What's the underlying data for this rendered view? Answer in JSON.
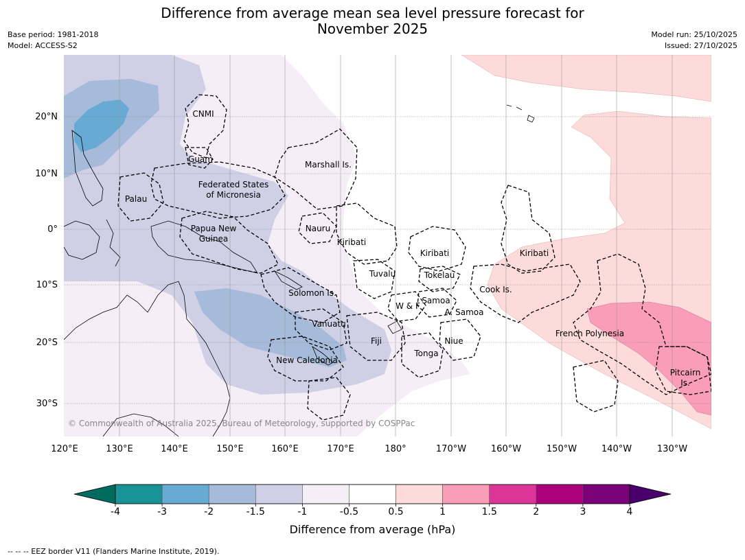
{
  "title_line1": "Difference from average mean sea level pressure forecast for",
  "title_line2": "November 2025",
  "meta_left": [
    "Base period: 1981-2018",
    "Model: ACCESS-S2"
  ],
  "meta_right": [
    "Model run: 25/10/2025",
    "Issued: 27/10/2025"
  ],
  "copyright": "© Commonwealth of Australia 2025, Bureau of Meteorology, supported by COSPPac",
  "lon_labels": [
    "120°E",
    "130°E",
    "140°E",
    "150°E",
    "160°E",
    "170°E",
    "180°",
    "170°W",
    "160°W",
    "150°W",
    "140°W",
    "130°W"
  ],
  "lat_labels": [
    "20°N",
    "10°N",
    "0°",
    "10°S",
    "20°S",
    "30°S"
  ],
  "region_labels": [
    "CNMI",
    "Guam",
    "Marshall Is.",
    "Federated States",
    "of Micronesia",
    "Palau",
    "Papua New",
    "Guinea",
    "Nauru",
    "Kiribati",
    "Kiribati",
    "Kiribati",
    "Tuvalu",
    "Tokelau",
    "Cook Is.",
    "Solomon Is.",
    "Samoa",
    "W & F",
    "A. Samoa",
    "Vanuatu",
    "Fiji",
    "Niue",
    "Tonga",
    "French Polynesia",
    "New Caledonia",
    "Pitcairn",
    "Is."
  ],
  "colorbar": {
    "title": "Difference from average (hPa)",
    "ticks": [
      "-4",
      "-3",
      "-2",
      "-1.5",
      "-1",
      "-0.5",
      "0.5",
      "1",
      "1.5",
      "2",
      "3",
      "4"
    ],
    "colors": [
      "#1a9396",
      "#67aad4",
      "#a6bad9",
      "#cfd0e6",
      "#f5eef7",
      "#ffffff",
      "#fddbdb",
      "#f99db8",
      "#dc3597",
      "#ad017e",
      "#7a0177"
    ],
    "extend_low": "#006b5e",
    "extend_high": "#49006a"
  },
  "legend_footnote": "--  --  -- EEZ border V11 (Flanders Marine Institute, 2019)."
}
